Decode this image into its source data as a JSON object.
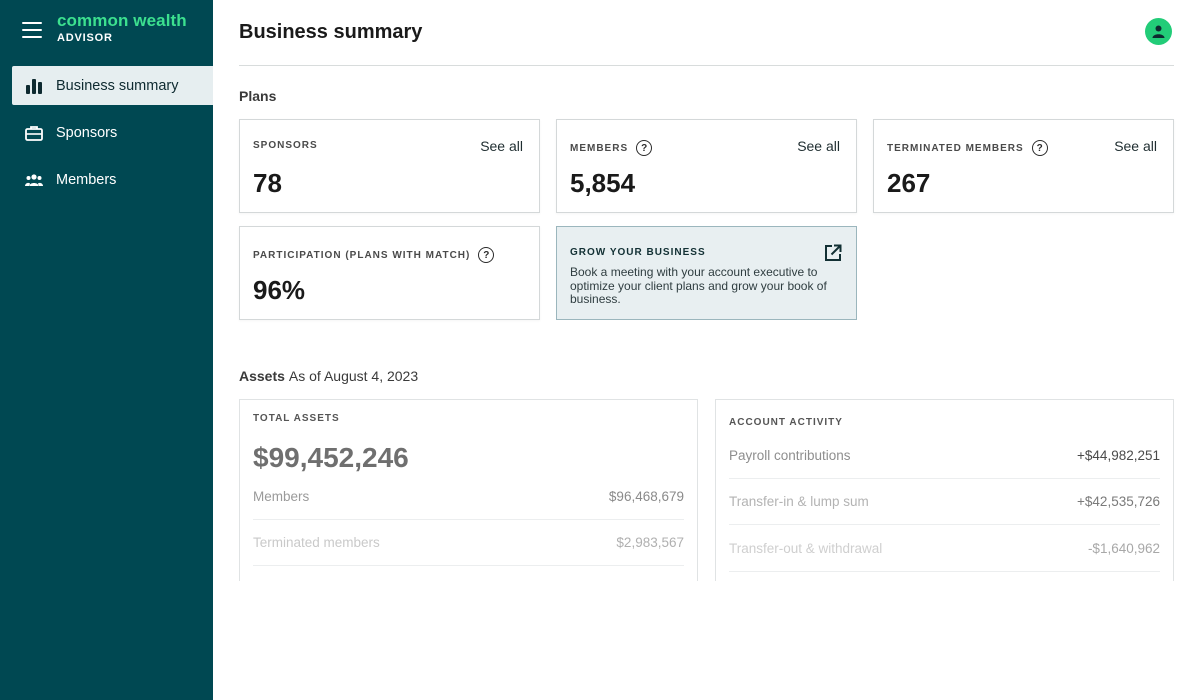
{
  "brand": {
    "name": "common wealth",
    "subtitle": "ADVISOR"
  },
  "sidebar": {
    "items": [
      {
        "label": "Business summary",
        "icon": "bar-chart-icon",
        "active": true
      },
      {
        "label": "Sponsors",
        "icon": "briefcase-icon",
        "active": false
      },
      {
        "label": "Members",
        "icon": "people-icon",
        "active": false
      }
    ]
  },
  "header": {
    "title": "Business summary"
  },
  "plans": {
    "label": "Plans",
    "see_all": "See all",
    "sponsors": {
      "title": "SPONSORS",
      "value": "78"
    },
    "members": {
      "title": "MEMBERS",
      "value": "5,854"
    },
    "terminated": {
      "title": "TERMINATED MEMBERS",
      "value": "267"
    },
    "participation": {
      "title": "PARTICIPATION (PLANS WITH MATCH)",
      "value": "96%"
    },
    "grow": {
      "title": "GROW YOUR BUSINESS",
      "text": "Book a meeting with your account executive to optimize your client plans and grow your book of business."
    }
  },
  "assets": {
    "label": "Assets",
    "as_of": "As of August 4, 2023",
    "total": {
      "title": "TOTAL ASSETS",
      "value": "$99,452,246",
      "rows": [
        {
          "label": "Members",
          "amount": "$96,468,679"
        },
        {
          "label": "Terminated members",
          "amount": "$2,983,567"
        }
      ]
    },
    "activity": {
      "title": "ACCOUNT ACTIVITY",
      "rows": [
        {
          "label": "Payroll contributions",
          "amount": "+$44,982,251"
        },
        {
          "label": "Transfer-in & lump sum",
          "amount": "+$42,535,726"
        },
        {
          "label": "Transfer-out & withdrawal",
          "amount": "-$1,640,962"
        }
      ]
    }
  },
  "colors": {
    "sidebar_bg": "#004852",
    "brand_green": "#3ce08f",
    "avatar_green": "#22cc78",
    "active_nav_bg": "#e6eef0",
    "grow_card_bg": "#e8eff1"
  }
}
